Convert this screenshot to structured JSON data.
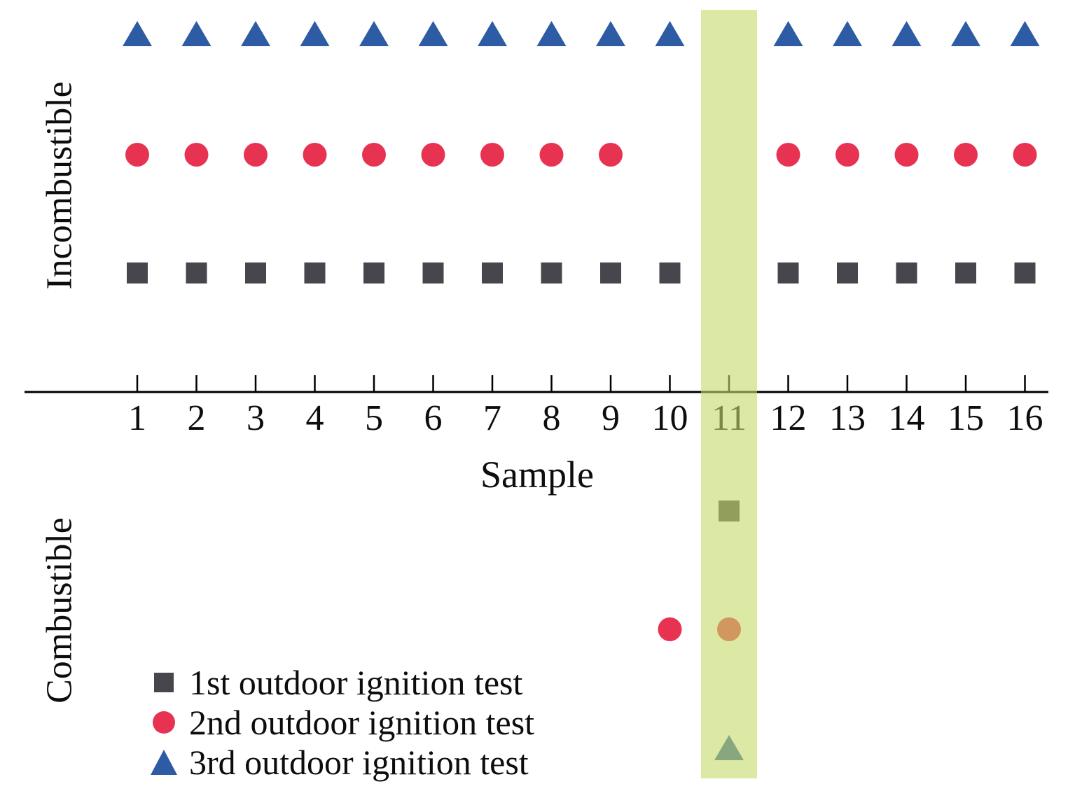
{
  "figure": {
    "xlabel": "Sample",
    "y_axis_top_label": "Incombustible",
    "y_axis_bottom_label": "Combustible"
  },
  "chart_data": {
    "type": "scatter",
    "title": "",
    "xlabel": "Sample",
    "ylabel": "",
    "x_categories": [
      1,
      2,
      3,
      4,
      5,
      6,
      7,
      8,
      9,
      10,
      11,
      12,
      13,
      14,
      15,
      16
    ],
    "y_categories": [
      "Combustible",
      "Incombustible"
    ],
    "grid": false,
    "legend_position": "bottom-left",
    "highlight": {
      "sample": 11,
      "color": "#c5da67",
      "opacity": 0.6
    },
    "series": [
      {
        "name": "1st outdoor ignition test",
        "marker": "square",
        "color": "#46464c",
        "values": [
          "Incombustible",
          "Incombustible",
          "Incombustible",
          "Incombustible",
          "Incombustible",
          "Incombustible",
          "Incombustible",
          "Incombustible",
          "Incombustible",
          "Incombustible",
          "Combustible",
          "Incombustible",
          "Incombustible",
          "Incombustible",
          "Incombustible",
          "Incombustible"
        ]
      },
      {
        "name": "2nd outdoor ignition test",
        "marker": "circle",
        "color": "#e73351",
        "values": [
          "Incombustible",
          "Incombustible",
          "Incombustible",
          "Incombustible",
          "Incombustible",
          "Incombustible",
          "Incombustible",
          "Incombustible",
          "Incombustible",
          "Combustible",
          "Combustible",
          "Incombustible",
          "Incombustible",
          "Incombustible",
          "Incombustible",
          "Incombustible"
        ]
      },
      {
        "name": "3rd outdoor ignition test",
        "marker": "triangle",
        "color": "#2d5ba4",
        "values": [
          "Incombustible",
          "Incombustible",
          "Incombustible",
          "Incombustible",
          "Incombustible",
          "Incombustible",
          "Incombustible",
          "Incombustible",
          "Incombustible",
          "Incombustible",
          "Combustible",
          "Incombustible",
          "Incombustible",
          "Incombustible",
          "Incombustible",
          "Incombustible"
        ]
      }
    ]
  }
}
